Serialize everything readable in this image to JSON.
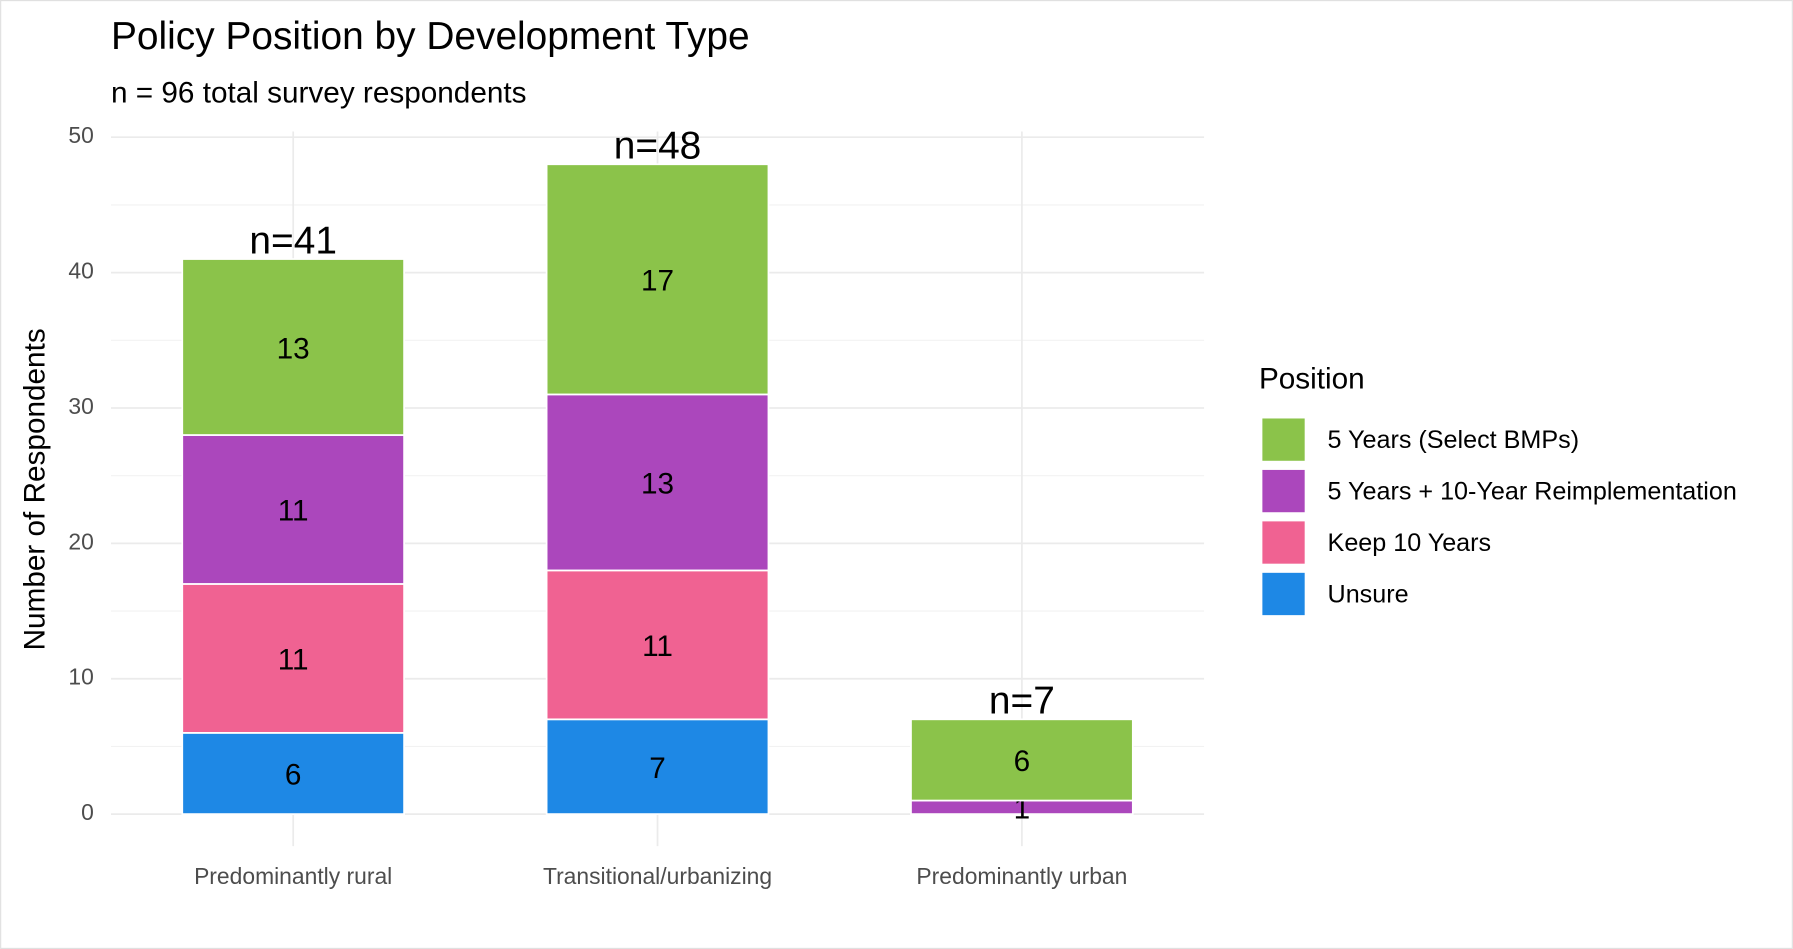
{
  "chart_data": {
    "type": "stacked_bar",
    "title": "Policy Position by Development Type",
    "subtitle": "n = 96 total survey respondents",
    "y_label": "Number of Respondents",
    "legend_title": "Position",
    "categories": [
      "Predominantly rural",
      "Transitional/urbanizing",
      "Predominantly urban"
    ],
    "series": [
      {
        "name": "Unsure",
        "color": "#1e88e5",
        "values": [
          6,
          7,
          0
        ]
      },
      {
        "name": "Keep 10 Years",
        "color": "#f06292",
        "values": [
          11,
          11,
          0
        ]
      },
      {
        "name": "5 Years + 10-Year Reimplementation",
        "color": "#ab47bc",
        "values": [
          11,
          13,
          1
        ]
      },
      {
        "name": "5 Years (Select BMPs)",
        "color": "#8bc34a",
        "values": [
          13,
          17,
          6
        ]
      }
    ],
    "totals": {
      "values": [
        41,
        48,
        7
      ],
      "value_labels": [
        "n=41",
        "n=48",
        "n=7"
      ]
    },
    "ylim": [
      0,
      50
    ],
    "yticks": [
      0,
      10,
      20,
      30,
      40,
      50
    ],
    "minor_yticks": [
      5,
      15,
      25,
      35,
      45
    ],
    "grid": true,
    "legend_position": "right"
  }
}
